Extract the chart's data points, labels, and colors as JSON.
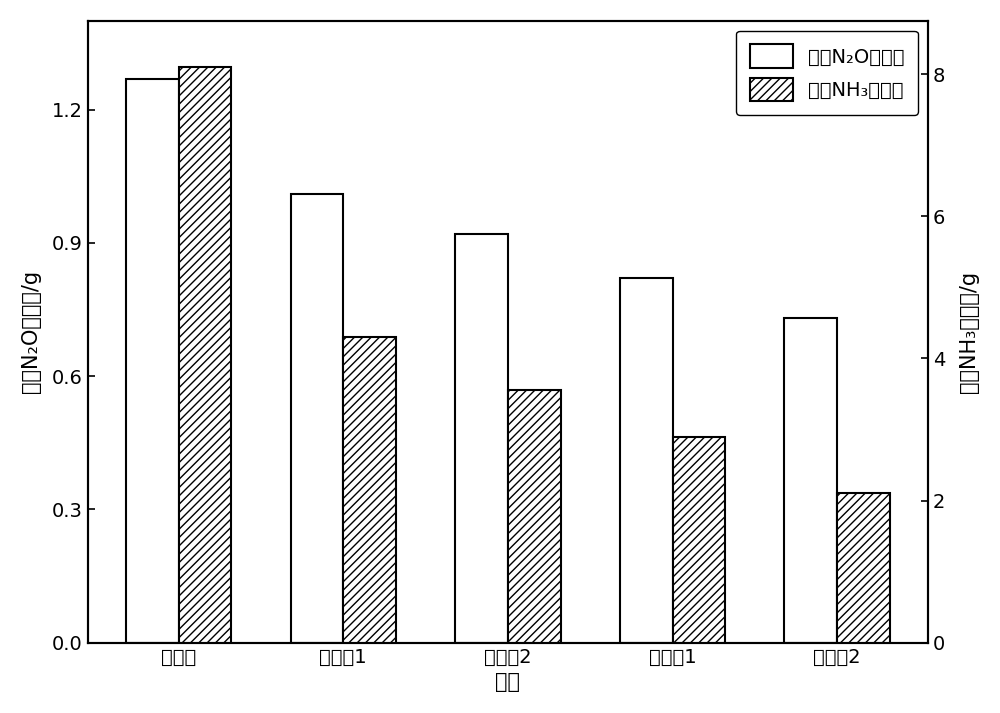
{
  "categories": [
    "对照样",
    "对比例1",
    "对比例2",
    "实施例1",
    "实施例2"
  ],
  "n2o_values": [
    1.27,
    1.01,
    0.92,
    0.82,
    0.73
  ],
  "nh3_values": [
    8.1,
    4.3,
    3.55,
    2.9,
    2.1
  ],
  "ylabel_left": "累积N₂O排放量/g",
  "ylabel_right": "累积NH₃排放量/g",
  "xlabel": "样品",
  "ylim_left": [
    0,
    1.4
  ],
  "ylim_right": [
    0,
    8.75
  ],
  "yticks_left": [
    0.0,
    0.3,
    0.6,
    0.9,
    1.2
  ],
  "yticks_right": [
    0,
    2,
    4,
    6,
    8
  ],
  "legend_label_n2o": "累积N₂O排放量",
  "legend_label_nh3": "累积NH₃排放量",
  "bar_width": 0.32,
  "edge_color": "#000000",
  "n2o_color": "#ffffff",
  "nh3_hatch": "////",
  "nh3_facecolor": "#ffffff",
  "background_color": "#ffffff",
  "fontsize_labels": 15,
  "fontsize_ticks": 14,
  "fontsize_legend": 14
}
